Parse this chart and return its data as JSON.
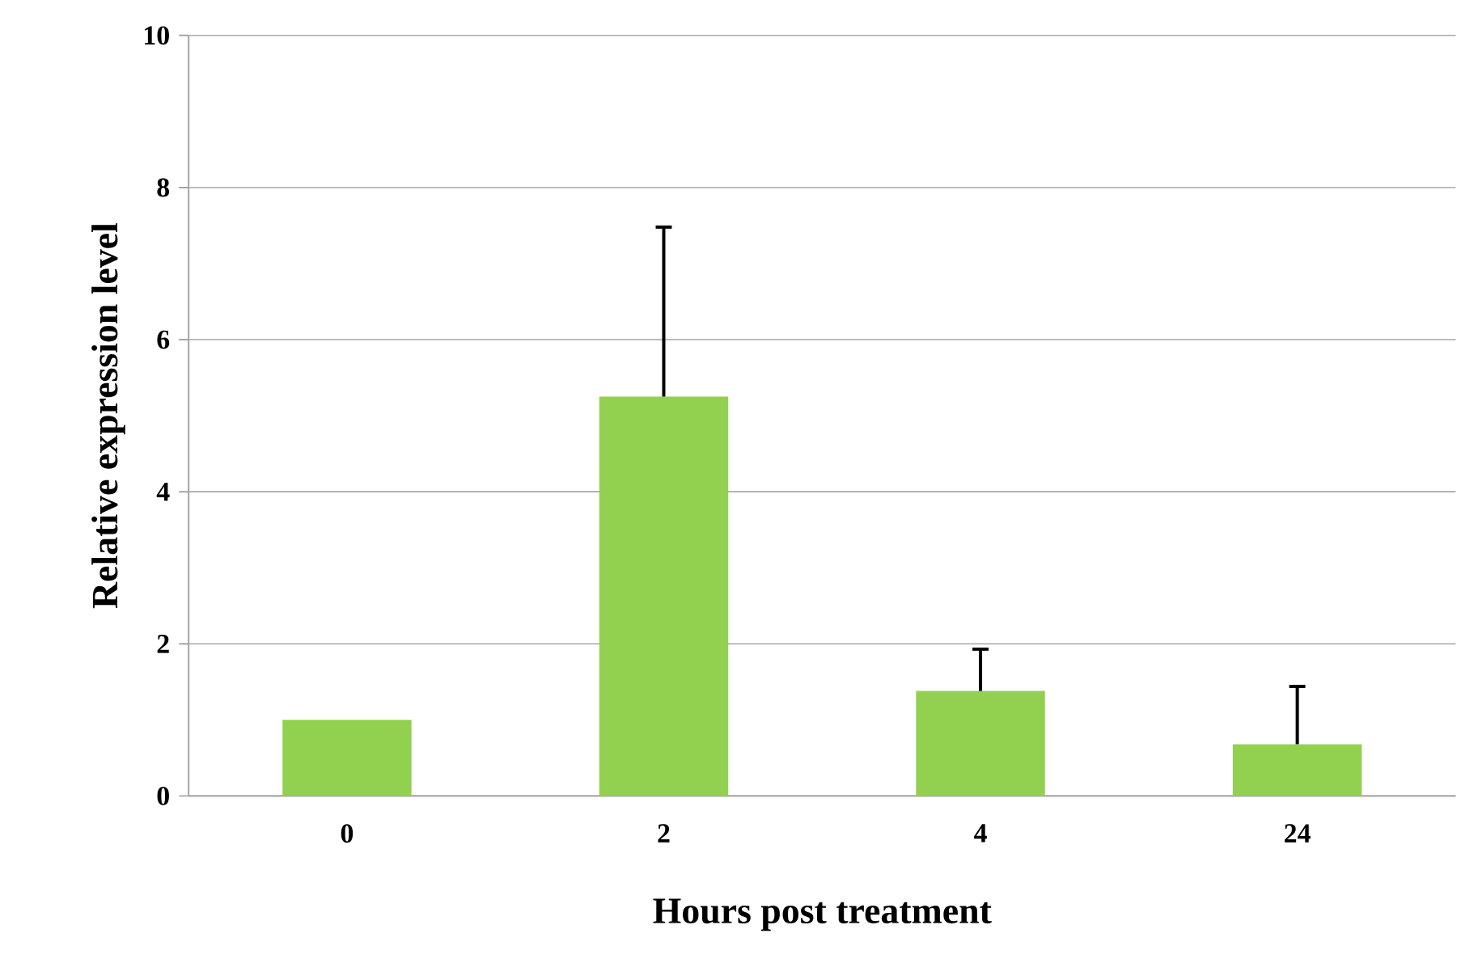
{
  "chart_data": {
    "type": "bar",
    "xlabel": "Hours post treatment",
    "ylabel": "Relative expression level",
    "categories": [
      "0",
      "2",
      "4",
      "24"
    ],
    "values": [
      1.0,
      5.25,
      1.38,
      0.68
    ],
    "errors": [
      null,
      [
        5.25,
        7.48
      ],
      [
        1.38,
        1.93
      ],
      [
        0.68,
        1.44
      ]
    ],
    "color": "#92d050",
    "ylim": [
      0,
      10
    ],
    "yticks": [
      0,
      2,
      4,
      6,
      8,
      10
    ],
    "grid": "y"
  }
}
